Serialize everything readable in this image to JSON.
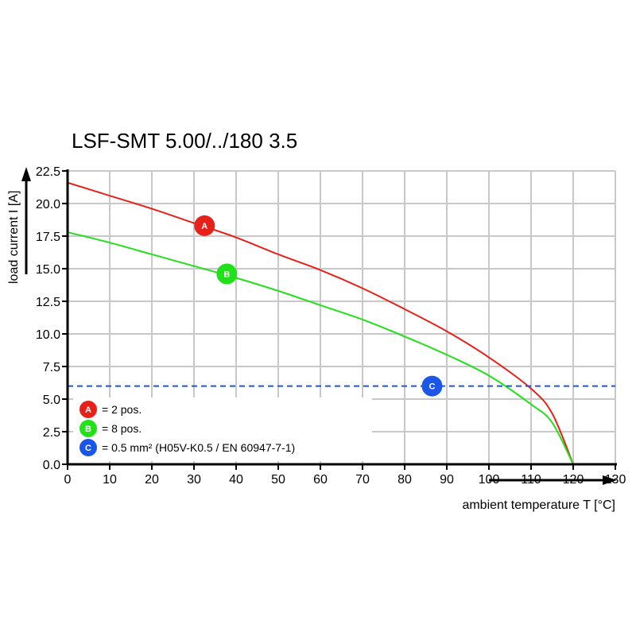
{
  "chart_data": {
    "type": "line",
    "title": "LSF-SMT 5.00/../180 3.5",
    "xlabel": "ambient temperature T [°C]",
    "ylabel": "load current I [A]",
    "xlim": [
      0,
      130
    ],
    "ylim": [
      0,
      22.5
    ],
    "xticks": [
      0,
      10,
      20,
      30,
      40,
      50,
      60,
      70,
      80,
      90,
      100,
      110,
      120,
      130
    ],
    "yticks": [
      "0.0",
      "2.5",
      "5.0",
      "7.5",
      "10.0",
      "12.5",
      "15.0",
      "17.5",
      "20.0",
      "22.5"
    ],
    "grid": true,
    "series": [
      {
        "marker": "A",
        "color": "#e8201a",
        "x": [
          0,
          10,
          20,
          30,
          40,
          50,
          60,
          70,
          80,
          90,
          100,
          110,
          115,
          120
        ],
        "y": [
          21.6,
          20.6,
          19.6,
          18.5,
          17.4,
          16.1,
          14.9,
          13.5,
          11.9,
          10.2,
          8.2,
          5.8,
          3.9,
          0
        ],
        "marker_at": [
          32.5,
          18.3
        ]
      },
      {
        "marker": "B",
        "color": "#22e01a",
        "x": [
          0,
          10,
          20,
          30,
          40,
          50,
          60,
          70,
          80,
          90,
          100,
          110,
          115,
          120
        ],
        "y": [
          17.8,
          17.0,
          16.1,
          15.2,
          14.3,
          13.3,
          12.2,
          11.1,
          9.8,
          8.4,
          6.8,
          4.6,
          3.2,
          0
        ],
        "marker_at": [
          37.8,
          14.6
        ]
      },
      {
        "marker": "C",
        "color": "#1a56e8",
        "style": "dashed",
        "x": [
          0,
          130
        ],
        "y": [
          6.0,
          6.0
        ],
        "marker_at": [
          86.5,
          6.0
        ]
      }
    ],
    "legend": {
      "placement": "bottom-left",
      "entries": [
        {
          "marker": "A",
          "text": "= 2 pos."
        },
        {
          "marker": "B",
          "text": "= 8 pos."
        },
        {
          "marker": "C",
          "text": "= 0.5 mm² (H05V-K0.5 / EN 60947-7-1)"
        }
      ]
    }
  }
}
